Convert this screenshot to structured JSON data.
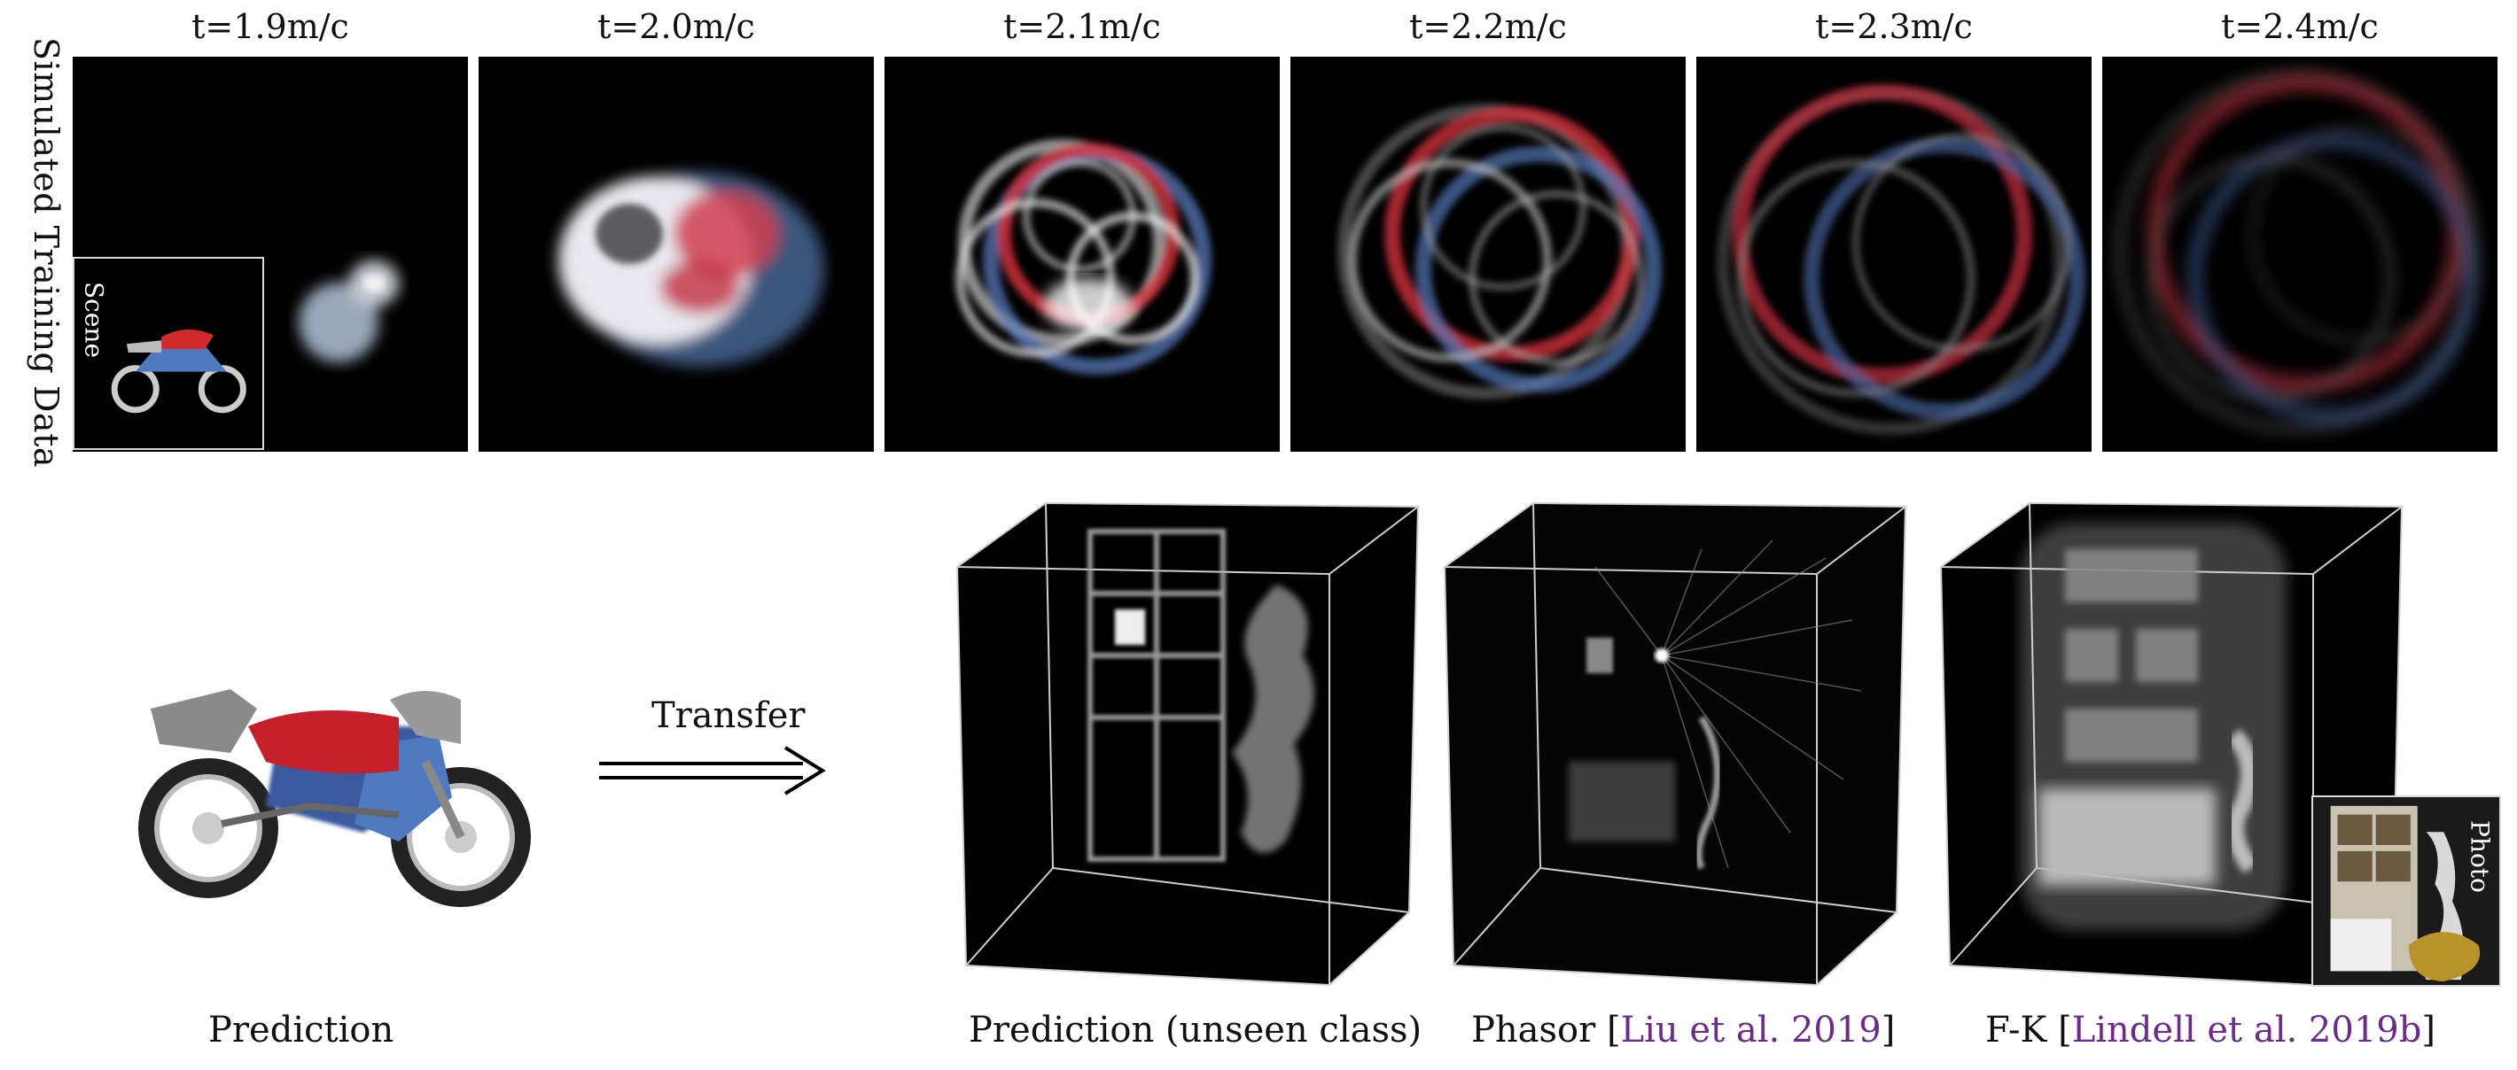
{
  "side_label": "Simulated Training Data",
  "time_frames": [
    {
      "label": "t=1.9m/c"
    },
    {
      "label": "t=2.0m/c"
    },
    {
      "label": "t=2.1m/c"
    },
    {
      "label": "t=2.2m/c"
    },
    {
      "label": "t=2.3m/c"
    },
    {
      "label": "t=2.4m/c"
    }
  ],
  "scene_inset_label": "Scene",
  "photo_inset_label": "Photo",
  "transfer_label": "Transfer",
  "bottom_labels": {
    "prediction": "Prediction",
    "prediction_unseen": "Prediction (unseen class)",
    "phasor_name": "Phasor [",
    "phasor_cite": "Liu et al. 2019",
    "phasor_close": "]",
    "fk_name": "F-K [",
    "fk_cite": "Lindell et al. 2019b",
    "fk_close": "]"
  },
  "colors": {
    "citation": "#6b2a8c",
    "red_wave": "#d8323c",
    "blue_wave": "#5b7fc4"
  }
}
